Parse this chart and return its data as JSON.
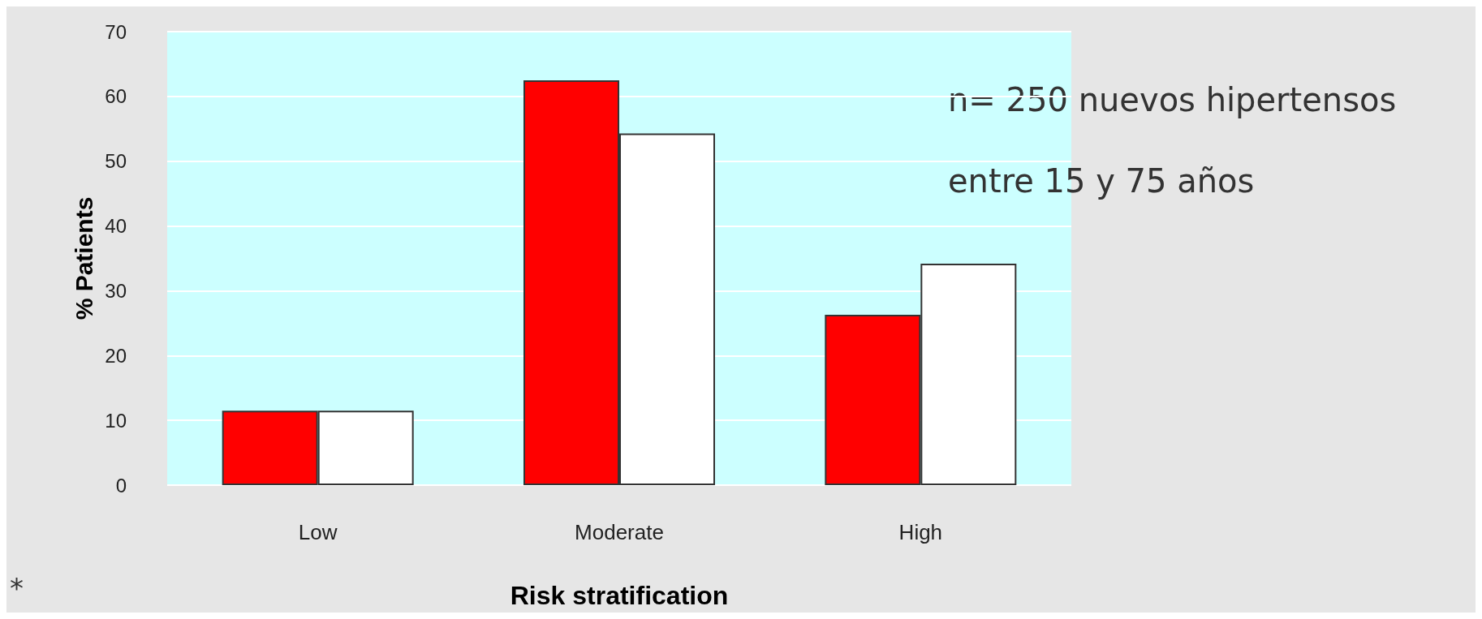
{
  "chart_data": {
    "type": "bar",
    "xlabel": "Risk stratification",
    "ylabel": "% Patients",
    "categories": [
      "Low",
      "Moderate",
      "High"
    ],
    "series": [
      {
        "color": "#ff0000",
        "values": [
          11.5,
          62.5,
          26.3
        ]
      },
      {
        "color": "#ffffff",
        "values": [
          11.5,
          54.3,
          34.2
        ]
      }
    ],
    "ylim": [
      0,
      70
    ],
    "yticks": [
      0,
      10,
      20,
      30,
      40,
      50,
      60,
      70
    ],
    "grid": "y",
    "annotations": [
      "n= 250 nuevos hipertensos",
      "entre 15 y 75 años",
      "*"
    ]
  }
}
